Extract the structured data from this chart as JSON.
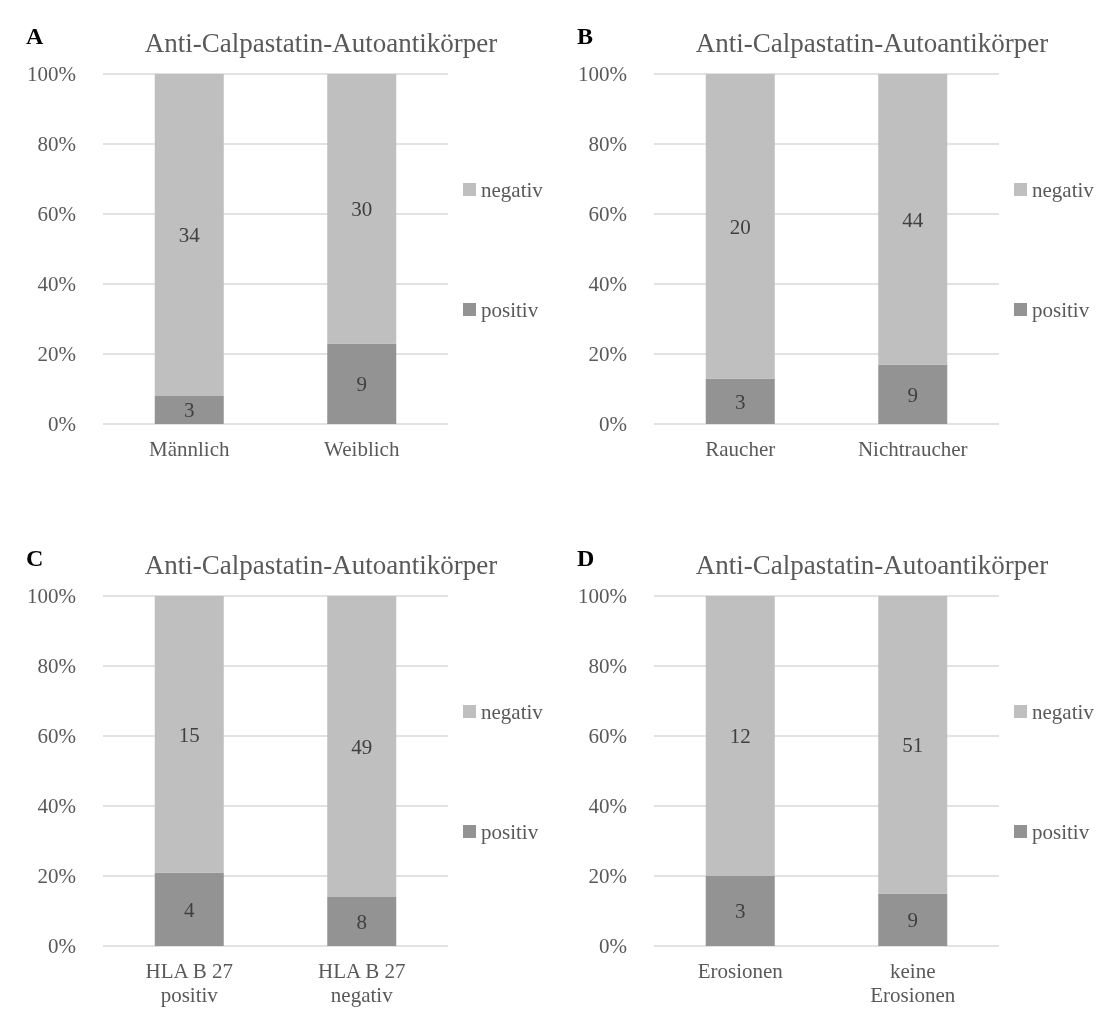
{
  "chart_data": [
    {
      "type": "bar",
      "stacked": true,
      "title": "Anti-Calpastatin-Autoantikörper",
      "annotations": [
        "A",
        "3",
        "9",
        "34",
        "30"
      ],
      "categories": [
        "Männlich",
        "Weiblich"
      ],
      "ylim": [
        0,
        100
      ],
      "yticks": [
        {
          "value": 0,
          "label": "0%"
        },
        {
          "value": 20,
          "label": "20%"
        },
        {
          "value": 40,
          "label": "40%"
        },
        {
          "value": 60,
          "label": "60%"
        },
        {
          "value": 80,
          "label": "80%"
        },
        {
          "value": 100,
          "label": "100%"
        }
      ],
      "grid": "y",
      "legend": "right",
      "series": [
        {
          "name": "positiv",
          "color": "#939393",
          "values": [
            8,
            23
          ]
        },
        {
          "name": "negativ",
          "color": "#bfbfbf",
          "values": [
            92,
            77
          ]
        }
      ]
    },
    {
      "type": "bar",
      "stacked": true,
      "title": "Anti-Calpastatin-Autoantikörper",
      "annotations": [
        "B",
        "3",
        "9",
        "20",
        "44"
      ],
      "categories": [
        "Raucher",
        "Nichtraucher"
      ],
      "ylim": [
        0,
        100
      ],
      "yticks": [
        {
          "value": 0,
          "label": "0%"
        },
        {
          "value": 20,
          "label": "20%"
        },
        {
          "value": 40,
          "label": "40%"
        },
        {
          "value": 60,
          "label": "60%"
        },
        {
          "value": 80,
          "label": "80%"
        },
        {
          "value": 100,
          "label": "100%"
        }
      ],
      "grid": "y",
      "legend": "right",
      "series": [
        {
          "name": "positiv",
          "color": "#939393",
          "values": [
            13,
            17
          ]
        },
        {
          "name": "negativ",
          "color": "#bfbfbf",
          "values": [
            87,
            83
          ]
        }
      ]
    },
    {
      "type": "bar",
      "stacked": true,
      "title": "Anti-Calpastatin-Autoantikörper",
      "annotations": [
        "C",
        "4",
        "8",
        "15",
        "49"
      ],
      "categories": [
        "HLA B 27 positiv",
        "HLA B 27 negativ"
      ],
      "ylim": [
        0,
        100
      ],
      "yticks": [
        {
          "value": 0,
          "label": "0%"
        },
        {
          "value": 20,
          "label": "20%"
        },
        {
          "value": 40,
          "label": "40%"
        },
        {
          "value": 60,
          "label": "60%"
        },
        {
          "value": 80,
          "label": "80%"
        },
        {
          "value": 100,
          "label": "100%"
        }
      ],
      "grid": "y",
      "legend": "right",
      "series": [
        {
          "name": "positiv",
          "color": "#939393",
          "values": [
            21,
            14
          ]
        },
        {
          "name": "negativ",
          "color": "#bfbfbf",
          "values": [
            79,
            86
          ]
        }
      ]
    },
    {
      "type": "bar",
      "stacked": true,
      "title": "Anti-Calpastatin-Autoantikörper",
      "annotations": [
        "D",
        "3",
        "9",
        "12",
        "51"
      ],
      "categories": [
        "Erosionen",
        "keine Erosionen"
      ],
      "ylim": [
        0,
        100
      ],
      "yticks": [
        {
          "value": 0,
          "label": "0%"
        },
        {
          "value": 20,
          "label": "20%"
        },
        {
          "value": 40,
          "label": "40%"
        },
        {
          "value": 60,
          "label": "60%"
        },
        {
          "value": 80,
          "label": "80%"
        },
        {
          "value": 100,
          "label": "100%"
        }
      ],
      "grid": "y",
      "legend": "right",
      "series": [
        {
          "name": "positiv",
          "color": "#939393",
          "values": [
            20,
            15
          ]
        },
        {
          "name": "negativ",
          "color": "#bfbfbf",
          "values": [
            80,
            85
          ]
        }
      ]
    }
  ]
}
